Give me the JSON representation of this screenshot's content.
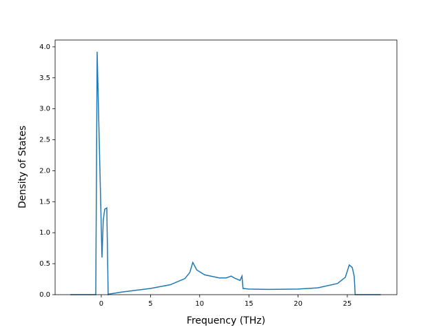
{
  "chart_data": {
    "type": "line",
    "xlabel": "Frequency (THz)",
    "ylabel": "Density of States",
    "x": [
      -3.15,
      -0.56,
      -0.42,
      0.07,
      0.2,
      0.35,
      0.56,
      0.7,
      0.8,
      2,
      5,
      7,
      8.5,
      9.0,
      9.3,
      9.7,
      10.5,
      12,
      12.7,
      13.2,
      13.5,
      14.1,
      14.3,
      14.4,
      15,
      17,
      20,
      22,
      24,
      24.8,
      25.2,
      25.5,
      25.7,
      25.8,
      28.4
    ],
    "series": [
      {
        "name": "DOS",
        "color": "#1f77b4",
        "values": [
          0,
          0,
          3.92,
          0.6,
          1.2,
          1.38,
          1.4,
          0,
          0.01,
          0.04,
          0.1,
          0.16,
          0.26,
          0.36,
          0.52,
          0.4,
          0.32,
          0.27,
          0.27,
          0.3,
          0.27,
          0.23,
          0.3,
          0.1,
          0.09,
          0.085,
          0.09,
          0.11,
          0.18,
          0.28,
          0.48,
          0.44,
          0.3,
          0,
          0
        ]
      }
    ],
    "xlim": [
      -4.69,
      30.04
    ],
    "ylim": [
      0,
      4.11
    ],
    "xticks": [
      0,
      5,
      10,
      15,
      20,
      25
    ],
    "yticks": [
      {
        "value": 0,
        "label": "0.0"
      },
      0.5,
      {
        "value": 1,
        "label": "1.0"
      },
      1.5,
      {
        "value": 2,
        "label": "2.0"
      },
      2.5,
      {
        "value": 3,
        "label": "3.0"
      },
      3.5,
      {
        "value": 4,
        "label": "4.0"
      }
    ]
  }
}
